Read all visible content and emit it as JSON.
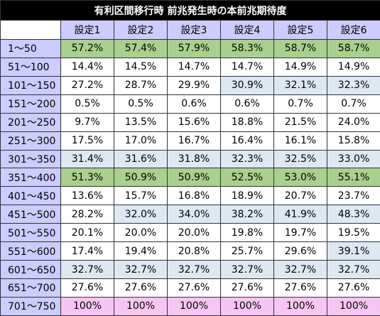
{
  "title": "有利区間移行時 前兆発生時の本前兆期待度",
  "colors": {
    "title_bg": "#000000",
    "header_bg": "#ccccff",
    "green": "#a9d08e",
    "blue": "#dde8f3",
    "pink": "#f7c5f2"
  },
  "columns": [
    "設定1",
    "設定2",
    "設定3",
    "設定4",
    "設定5",
    "設定6"
  ],
  "rows": [
    {
      "label": "1～50",
      "values": [
        "57.2%",
        "57.4%",
        "57.9%",
        "58.3%",
        "58.7%",
        "58.7%"
      ],
      "hl": [
        "green",
        "green",
        "green",
        "green",
        "green",
        "green"
      ]
    },
    {
      "label": "51～100",
      "values": [
        "14.4%",
        "14.5%",
        "14.7%",
        "14.7%",
        "14.9%",
        "14.9%"
      ],
      "hl": [
        "",
        "",
        "",
        "",
        "",
        ""
      ]
    },
    {
      "label": "101～150",
      "values": [
        "27.2%",
        "28.7%",
        "29.9%",
        "30.9%",
        "32.1%",
        "32.3%"
      ],
      "hl": [
        "",
        "",
        "",
        "blue",
        "blue",
        "blue"
      ]
    },
    {
      "label": "151～200",
      "values": [
        "0.5%",
        "0.5%",
        "0.6%",
        "0.6%",
        "0.7%",
        "0.7%"
      ],
      "hl": [
        "",
        "",
        "",
        "",
        "",
        ""
      ]
    },
    {
      "label": "201～250",
      "values": [
        "9.7%",
        "13.5%",
        "15.6%",
        "18.8%",
        "21.5%",
        "24.0%"
      ],
      "hl": [
        "",
        "",
        "",
        "",
        "",
        ""
      ]
    },
    {
      "label": "251～300",
      "values": [
        "17.5%",
        "17.0%",
        "16.7%",
        "16.4%",
        "16.1%",
        "15.8%"
      ],
      "hl": [
        "",
        "",
        "",
        "",
        "",
        ""
      ]
    },
    {
      "label": "301～350",
      "values": [
        "31.4%",
        "31.6%",
        "31.8%",
        "32.3%",
        "32.5%",
        "33.0%"
      ],
      "hl": [
        "blue",
        "blue",
        "blue",
        "blue",
        "blue",
        "blue"
      ]
    },
    {
      "label": "351～400",
      "values": [
        "51.3%",
        "50.9%",
        "50.9%",
        "52.5%",
        "53.0%",
        "55.1%"
      ],
      "hl": [
        "green",
        "green",
        "green",
        "green",
        "green",
        "green"
      ]
    },
    {
      "label": "401～450",
      "values": [
        "13.6%",
        "15.7%",
        "16.8%",
        "18.9%",
        "20.7%",
        "23.7%"
      ],
      "hl": [
        "",
        "",
        "",
        "",
        "",
        ""
      ]
    },
    {
      "label": "451～500",
      "values": [
        "28.2%",
        "32.0%",
        "34.0%",
        "38.2%",
        "41.9%",
        "48.3%"
      ],
      "hl": [
        "",
        "blue",
        "blue",
        "blue",
        "blue",
        "blue"
      ]
    },
    {
      "label": "501～550",
      "values": [
        "20.1%",
        "20.0%",
        "20.0%",
        "19.8%",
        "19.7%",
        "19.5%"
      ],
      "hl": [
        "",
        "",
        "",
        "",
        "",
        ""
      ]
    },
    {
      "label": "551～600",
      "values": [
        "17.4%",
        "19.4%",
        "20.8%",
        "25.7%",
        "29.6%",
        "39.1%"
      ],
      "hl": [
        "",
        "",
        "",
        "",
        "",
        "blue"
      ]
    },
    {
      "label": "601～650",
      "values": [
        "32.7%",
        "32.7%",
        "32.7%",
        "32.7%",
        "32.7%",
        "32.7%"
      ],
      "hl": [
        "blue",
        "blue",
        "blue",
        "blue",
        "blue",
        "blue"
      ]
    },
    {
      "label": "651～700",
      "values": [
        "27.6%",
        "27.6%",
        "27.6%",
        "27.6%",
        "27.6%",
        "27.6%"
      ],
      "hl": [
        "",
        "",
        "",
        "",
        "",
        ""
      ]
    },
    {
      "label": "701～750",
      "values": [
        "100%",
        "100%",
        "100%",
        "100%",
        "100%",
        "100%"
      ],
      "hl": [
        "pink",
        "pink",
        "pink",
        "pink",
        "pink",
        "pink"
      ]
    }
  ]
}
